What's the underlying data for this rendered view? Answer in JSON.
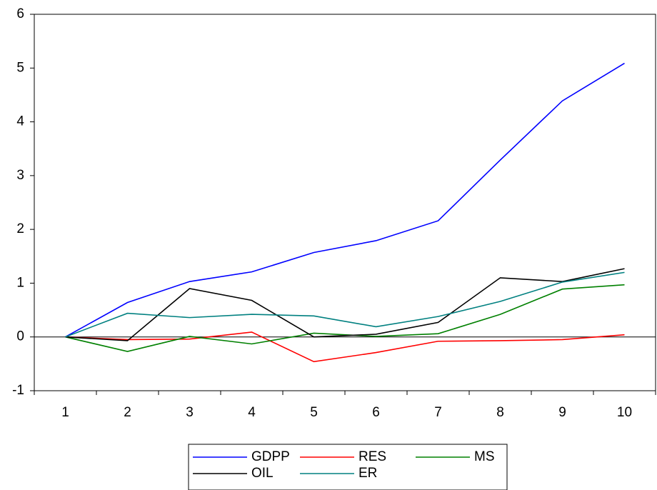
{
  "chart_data": {
    "type": "line",
    "title": "",
    "xlabel": "",
    "ylabel": "",
    "x": [
      1,
      2,
      3,
      4,
      5,
      6,
      7,
      8,
      9,
      10
    ],
    "ylim": [
      -1,
      6
    ],
    "yticks": [
      -1,
      0,
      1,
      2,
      3,
      4,
      5,
      6
    ],
    "zero_line": true,
    "grid": false,
    "legend": "bottom-center",
    "series": [
      {
        "name": "GDPP",
        "color": "#0000ff",
        "values": [
          0,
          0.64,
          1.03,
          1.21,
          1.57,
          1.79,
          2.16,
          3.29,
          4.39,
          5.09
        ]
      },
      {
        "name": "RES",
        "color": "#ff0000",
        "values": [
          0,
          -0.05,
          -0.04,
          0.09,
          -0.46,
          -0.29,
          -0.08,
          -0.07,
          -0.05,
          0.04
        ]
      },
      {
        "name": "MS",
        "color": "#008000",
        "values": [
          0,
          -0.27,
          0.01,
          -0.13,
          0.07,
          0.01,
          0.06,
          0.42,
          0.89,
          0.97
        ]
      },
      {
        "name": "OIL",
        "color": "#000000",
        "values": [
          0,
          -0.07,
          0.9,
          0.68,
          0.0,
          0.05,
          0.27,
          1.1,
          1.03,
          1.27
        ]
      },
      {
        "name": "ER",
        "color": "#008080",
        "values": [
          0,
          0.44,
          0.36,
          0.42,
          0.39,
          0.19,
          0.38,
          0.66,
          1.02,
          1.2
        ]
      }
    ]
  }
}
